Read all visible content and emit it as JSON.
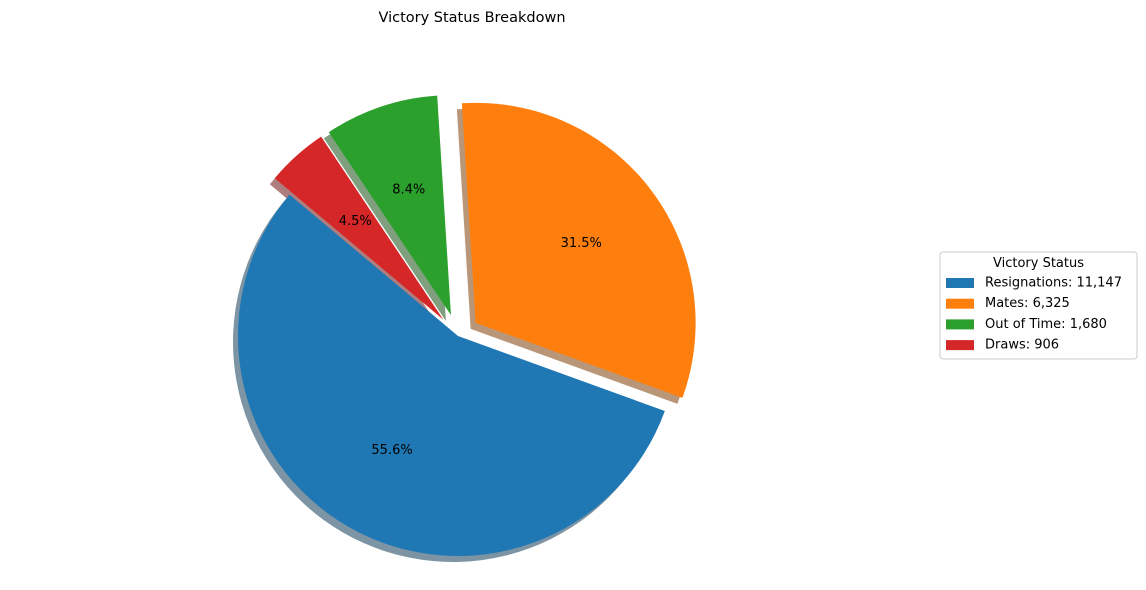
{
  "chart_data": {
    "type": "pie",
    "title": "Victory Status Breakdown",
    "legend_title": "Victory Status",
    "legend_position": "right",
    "shadow": true,
    "start_angle_deg": 140,
    "direction": "counterclockwise",
    "slices": [
      {
        "label": "Resignations",
        "value": 11147,
        "legend": "Resignations: 11,147",
        "pct_label": "55.6%",
        "color": "#1f77b4",
        "explode": 0.0
      },
      {
        "label": "Mates",
        "value": 6325,
        "legend": "Mates: 6,325",
        "pct_label": "31.5%",
        "color": "#ff7f0e",
        "explode": 0.1
      },
      {
        "label": "Out of Time",
        "value": 1680,
        "legend": "Out of Time: 1,680",
        "pct_label": "8.4%",
        "color": "#2ca02c",
        "explode": 0.1
      },
      {
        "label": "Draws",
        "value": 906,
        "legend": "Draws: 906",
        "pct_label": "4.5%",
        "color": "#d62728",
        "explode": 0.1
      }
    ]
  }
}
